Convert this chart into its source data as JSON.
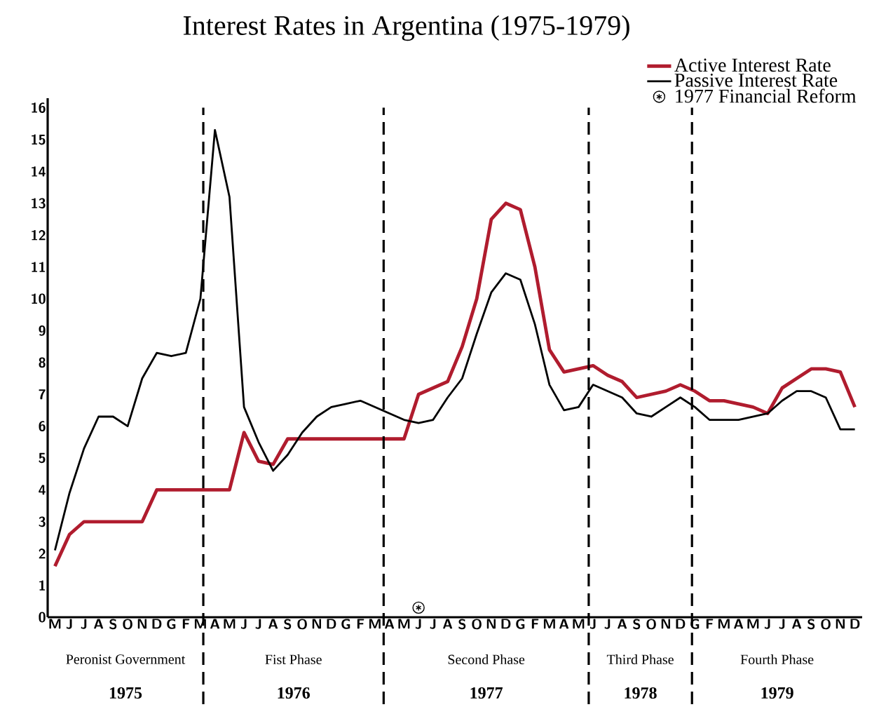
{
  "chart_data": {
    "type": "line",
    "title": "Interest Rates in Argentina (1975-1979)",
    "categories": [
      "M",
      "J",
      "J",
      "A",
      "S",
      "O",
      "N",
      "D",
      "G",
      "F",
      "M",
      "A",
      "M",
      "J",
      "J",
      "A",
      "S",
      "O",
      "N",
      "D",
      "G",
      "F",
      "M",
      "A",
      "M",
      "J",
      "J",
      "A",
      "S",
      "O",
      "N",
      "D",
      "G",
      "F",
      "M",
      "A",
      "M",
      "J",
      "J",
      "A",
      "S",
      "O",
      "N",
      "D",
      "G",
      "F",
      "M",
      "A",
      "M",
      "J",
      "J",
      "A",
      "S",
      "O",
      "N",
      "D"
    ],
    "series": [
      {
        "name": "Active Interest Rate",
        "color": "#b01c2e",
        "values": [
          1.6,
          2.6,
          3.0,
          3.0,
          3.0,
          3.0,
          3.0,
          4.0,
          4.0,
          4.0,
          4.0,
          4.0,
          4.0,
          5.8,
          4.9,
          4.8,
          5.6,
          5.6,
          5.6,
          5.6,
          5.6,
          5.6,
          5.6,
          5.6,
          5.6,
          7.0,
          7.2,
          7.4,
          8.5,
          10.0,
          12.5,
          13.0,
          12.8,
          11.0,
          8.4,
          7.7,
          7.8,
          7.9,
          7.6,
          7.4,
          6.9,
          7.0,
          7.1,
          7.3,
          7.1,
          6.8,
          6.8,
          6.7,
          6.6,
          6.4,
          7.2,
          7.5,
          7.8,
          7.8,
          7.7,
          6.6
        ]
      },
      {
        "name": "Passive Interest Rate",
        "color": "#000000",
        "values": [
          2.1,
          3.9,
          5.3,
          6.3,
          6.3,
          6.0,
          7.5,
          8.3,
          8.2,
          8.3,
          10.0,
          15.3,
          13.2,
          6.6,
          5.5,
          4.6,
          5.1,
          5.8,
          6.3,
          6.6,
          6.7,
          6.8,
          6.6,
          6.4,
          6.2,
          6.1,
          6.2,
          6.9,
          7.5,
          8.9,
          10.2,
          10.8,
          10.6,
          9.2,
          7.3,
          6.5,
          6.6,
          7.3,
          7.1,
          6.9,
          6.4,
          6.3,
          6.6,
          6.9,
          6.6,
          6.2,
          6.2,
          6.2,
          6.3,
          6.4,
          6.8,
          7.1,
          7.1,
          6.9,
          5.9,
          5.9
        ]
      },
      {
        "name": "1977 Financial Reform",
        "type": "scatter",
        "marker": "circle",
        "color": "#000000",
        "values": [
          null,
          null,
          null,
          null,
          null,
          null,
          null,
          null,
          null,
          null,
          null,
          null,
          null,
          null,
          null,
          null,
          null,
          null,
          null,
          null,
          null,
          null,
          null,
          null,
          null,
          0.3,
          null,
          null,
          null,
          null,
          null,
          null,
          null,
          null,
          null,
          null,
          null,
          null,
          null,
          null,
          null,
          null,
          null,
          null,
          null,
          null,
          null,
          null,
          null,
          null,
          null,
          null,
          null,
          null,
          null,
          null
        ]
      }
    ],
    "ylim": [
      0,
      16.3
    ],
    "yticks": [
      0,
      1,
      2,
      3,
      4,
      5,
      6,
      7,
      8,
      9,
      10,
      11,
      12,
      13,
      14,
      15,
      16
    ],
    "annotations": [
      "Peronist Government",
      "Fist Phase",
      "Second Phase",
      "Third Phase",
      "Fourth Phase",
      "1975",
      "1976",
      "1977",
      "1978",
      "1979"
    ],
    "legend": "top right",
    "marker": "none",
    "line_style": "solid"
  }
}
